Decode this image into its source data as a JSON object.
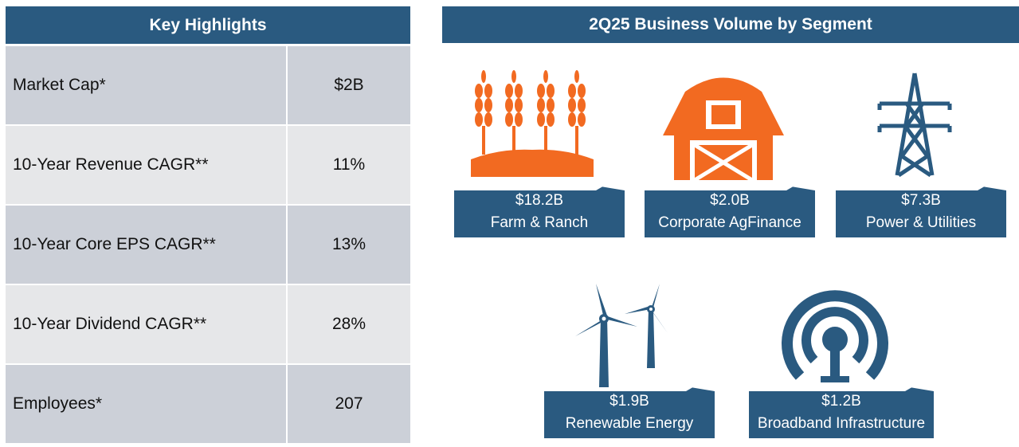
{
  "highlights": {
    "title": "Key Highlights",
    "rows": [
      {
        "label": "Market Cap*",
        "value": "$2B"
      },
      {
        "label": "10-Year Revenue CAGR**",
        "value": "11%"
      },
      {
        "label": "10-Year Core EPS CAGR**",
        "value": "13%"
      },
      {
        "label": "10-Year Dividend CAGR**",
        "value": "28%"
      },
      {
        "label": "Employees*",
        "value": "207"
      }
    ]
  },
  "segments": {
    "title": "2Q25 Business Volume by Segment",
    "items": [
      {
        "value": "$18.2B",
        "name": "Farm & Ranch",
        "icon": "wheat-icon",
        "color": "#f26a21"
      },
      {
        "value": "$2.0B",
        "name": "Corporate AgFinance",
        "icon": "barn-icon",
        "color": "#f26a21"
      },
      {
        "value": "$7.3B",
        "name": "Power & Utilities",
        "icon": "power-tower-icon",
        "color": "#2a5a80"
      },
      {
        "value": "$1.9B",
        "name": "Renewable Energy",
        "icon": "wind-turbine-icon",
        "color": "#2a5a80"
      },
      {
        "value": "$1.2B",
        "name": "Broadband Infrastructure",
        "icon": "broadband-tower-icon",
        "color": "#2a5a80"
      }
    ]
  },
  "colors": {
    "header": "#2a5a80",
    "orange": "#f26a21",
    "row_dark": "#ccd0d8",
    "row_light": "#e6e7e9"
  }
}
